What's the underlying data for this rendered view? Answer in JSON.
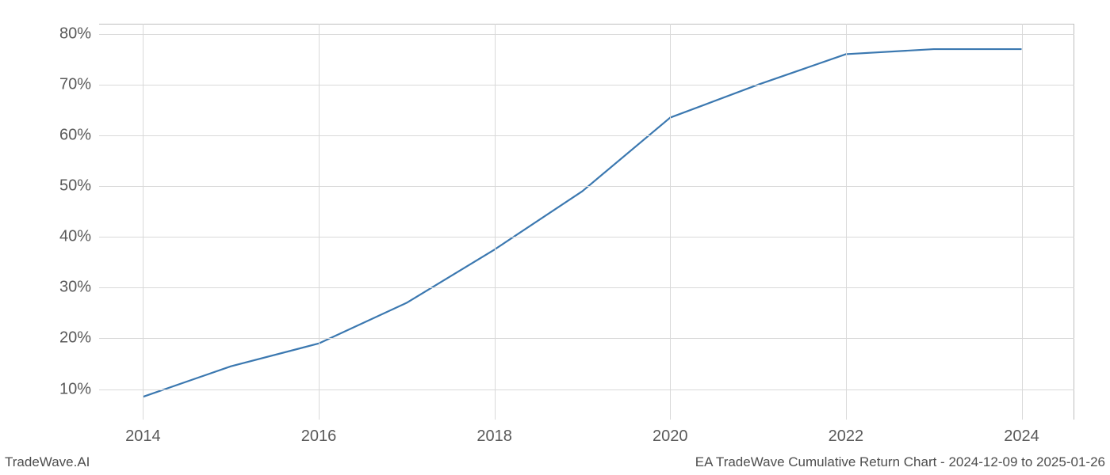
{
  "chart": {
    "type": "line",
    "background_color": "#ffffff",
    "grid_color": "#d9d9d9",
    "border_color": "#bfbfbf",
    "line_color": "#3b78b0",
    "line_width": 2.2,
    "tick_label_color": "#595959",
    "tick_fontsize": 20,
    "footer_color": "#4d4d4d",
    "footer_fontsize": 17,
    "x": {
      "min": 2013.5,
      "max": 2024.6,
      "ticks": [
        2014,
        2016,
        2018,
        2020,
        2022,
        2024
      ],
      "tick_labels": [
        "2014",
        "2016",
        "2018",
        "2020",
        "2022",
        "2024"
      ]
    },
    "y": {
      "min": 4,
      "max": 82,
      "ticks": [
        10,
        20,
        30,
        40,
        50,
        60,
        70,
        80
      ],
      "tick_labels": [
        "10%",
        "20%",
        "30%",
        "40%",
        "50%",
        "60%",
        "70%",
        "80%"
      ]
    },
    "series": {
      "x": [
        2014,
        2015,
        2016,
        2017,
        2018,
        2019,
        2020,
        2021,
        2022,
        2023,
        2024
      ],
      "y": [
        8.5,
        14.5,
        19,
        27,
        37.5,
        49,
        63.5,
        70,
        76,
        77,
        77
      ]
    }
  },
  "footer": {
    "left": "TradeWave.AI",
    "right": "EA TradeWave Cumulative Return Chart - 2024-12-09 to 2025-01-26"
  }
}
